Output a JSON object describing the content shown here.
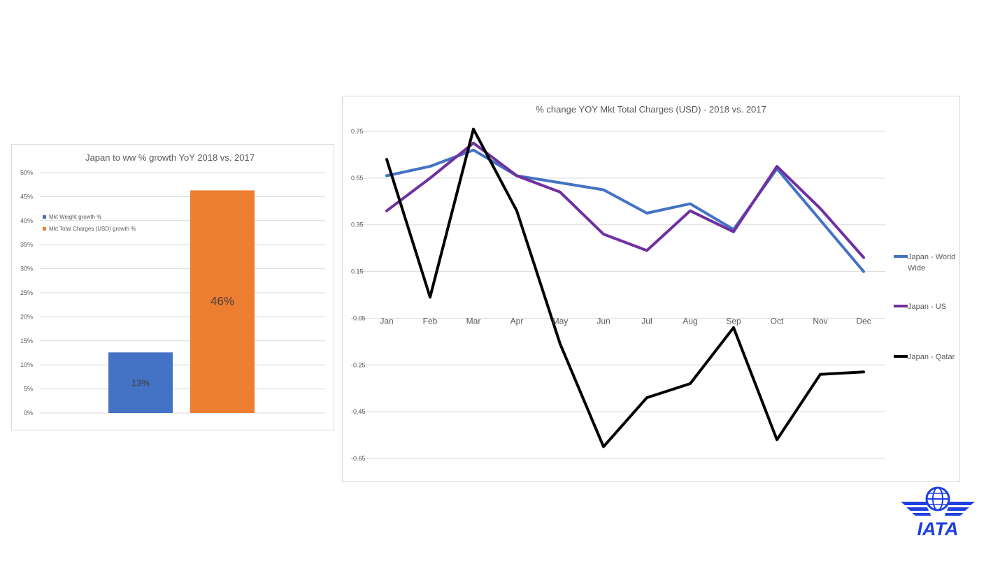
{
  "bar_chart": {
    "chart_data": {
      "type": "bar",
      "title": "Japan to ww % growth YoY 2018 vs. 2017",
      "series": [
        {
          "name": "Mkt Weight growth %",
          "value": 12.6,
          "label": "13%",
          "color": "#4472c4"
        },
        {
          "name": "Mkt Total Charges (USD) growth %",
          "value": 46.3,
          "label": "46%",
          "color": "#ed7d31"
        }
      ],
      "yticks": [
        "0%",
        "5%",
        "10%",
        "15%",
        "20%",
        "25%",
        "30%",
        "35%",
        "40%",
        "45%",
        "50%"
      ],
      "ylim": [
        0,
        50
      ],
      "grid": true,
      "legend": "top-left"
    }
  },
  "line_chart": {
    "chart_data": {
      "type": "line",
      "title": "% change YOY Mkt Total Charges (USD) - 2018 vs. 2017",
      "categories": [
        "Jan",
        "Feb",
        "Mar",
        "Apr",
        "May",
        "Jun",
        "Jul",
        "Aug",
        "Sep",
        "Oct",
        "Nov",
        "Dec"
      ],
      "yticks": [
        "0.75",
        "0.55",
        "0.35",
        "0.15",
        "-0.05",
        "-0.25",
        "-0.45",
        "-0.65"
      ],
      "ylim": [
        -0.65,
        0.75
      ],
      "grid": true,
      "legend": "right",
      "series": [
        {
          "name_line1": "Japan - World",
          "name_line2": "Wide",
          "color": "#4472c4",
          "values": [
            0.56,
            0.6,
            0.67,
            0.56,
            0.53,
            0.5,
            0.4,
            0.44,
            0.33,
            0.59,
            0.37,
            0.15
          ]
        },
        {
          "name_line1": "Japan - US",
          "name_line2": "",
          "color": "#7030a0",
          "values": [
            0.41,
            0.55,
            0.7,
            0.56,
            0.49,
            0.31,
            0.24,
            0.41,
            0.32,
            0.6,
            0.42,
            0.21
          ]
        },
        {
          "name_line1": "Japan - Qatar",
          "name_line2": "",
          "color": "#000000",
          "values": [
            0.63,
            0.04,
            0.76,
            0.41,
            -0.16,
            -0.6,
            -0.39,
            -0.33,
            -0.09,
            -0.57,
            -0.29,
            -0.28
          ]
        }
      ]
    }
  },
  "logo": {
    "text": "IATA",
    "color": "#1e40e0"
  }
}
